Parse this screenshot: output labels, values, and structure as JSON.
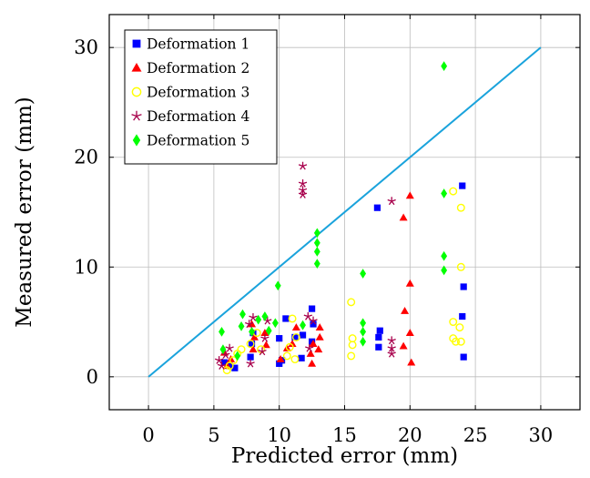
{
  "chart_data": {
    "type": "scatter",
    "xlabel": "Predicted error (mm)",
    "ylabel": "Measured error (mm)",
    "xlim": [
      -3,
      33
    ],
    "ylim": [
      -3,
      33
    ],
    "xticks": [
      0,
      5,
      10,
      15,
      20,
      25,
      30
    ],
    "yticks": [
      0,
      10,
      20,
      30
    ],
    "grid": true,
    "legend_position": "top-left",
    "reference_line": {
      "x": [
        0,
        30
      ],
      "y": [
        0,
        30
      ],
      "color": "#1aa3dc"
    },
    "series": [
      {
        "name": "Deformation 1",
        "marker": "square",
        "color": "#0000ff",
        "points": [
          [
            5.8,
            1.3
          ],
          [
            6.2,
            1.0
          ],
          [
            6.6,
            0.8
          ],
          [
            7.8,
            1.8
          ],
          [
            7.9,
            3.0
          ],
          [
            8.0,
            4.0
          ],
          [
            10.0,
            1.2
          ],
          [
            10.2,
            1.5
          ],
          [
            10.0,
            3.5
          ],
          [
            10.5,
            5.3
          ],
          [
            11.2,
            3.6
          ],
          [
            11.7,
            1.7
          ],
          [
            11.8,
            3.8
          ],
          [
            12.5,
            3.2
          ],
          [
            12.6,
            4.8
          ],
          [
            12.5,
            6.2
          ],
          [
            17.6,
            2.7
          ],
          [
            17.6,
            3.6
          ],
          [
            17.7,
            4.2
          ],
          [
            17.5,
            15.4
          ],
          [
            24.0,
            17.4
          ],
          [
            24.1,
            8.2
          ],
          [
            24.0,
            5.5
          ],
          [
            24.1,
            1.8
          ]
        ]
      },
      {
        "name": "Deformation 2",
        "marker": "triangle",
        "color": "#ff0000",
        "points": [
          [
            5.8,
            2.2
          ],
          [
            6.0,
            1.0
          ],
          [
            6.3,
            1.6
          ],
          [
            7.9,
            4.8
          ],
          [
            8.0,
            2.5
          ],
          [
            8.1,
            3.6
          ],
          [
            8.9,
            4.0
          ],
          [
            9.0,
            2.9
          ],
          [
            10.1,
            1.6
          ],
          [
            10.6,
            2.6
          ],
          [
            11.0,
            3.0
          ],
          [
            11.3,
            4.5
          ],
          [
            12.4,
            2.1
          ],
          [
            12.5,
            1.2
          ],
          [
            12.6,
            3.0
          ],
          [
            13.0,
            2.5
          ],
          [
            13.1,
            3.6
          ],
          [
            13.1,
            4.5
          ],
          [
            19.5,
            2.8
          ],
          [
            19.6,
            6.0
          ],
          [
            19.5,
            14.5
          ],
          [
            20.0,
            16.5
          ],
          [
            20.0,
            8.5
          ],
          [
            20.0,
            4.0
          ],
          [
            20.1,
            1.3
          ]
        ]
      },
      {
        "name": "Deformation 3",
        "marker": "circle-open",
        "color": "#ffff00",
        "points": [
          [
            6.0,
            0.6
          ],
          [
            6.2,
            1.0
          ],
          [
            6.5,
            1.5
          ],
          [
            6.8,
            2.1
          ],
          [
            7.1,
            2.5
          ],
          [
            7.8,
            3.0
          ],
          [
            8.3,
            4.0
          ],
          [
            8.6,
            2.5
          ],
          [
            10.6,
            1.9
          ],
          [
            10.8,
            2.7
          ],
          [
            11.0,
            5.3
          ],
          [
            11.2,
            1.6
          ],
          [
            11.3,
            3.6
          ],
          [
            15.5,
            6.8
          ],
          [
            15.6,
            3.5
          ],
          [
            15.6,
            2.9
          ],
          [
            15.5,
            1.9
          ],
          [
            23.3,
            16.9
          ],
          [
            23.9,
            15.4
          ],
          [
            23.9,
            10.0
          ],
          [
            23.3,
            5.0
          ],
          [
            23.8,
            4.5
          ],
          [
            23.3,
            3.5
          ],
          [
            23.5,
            3.2
          ],
          [
            23.9,
            3.2
          ]
        ]
      },
      {
        "name": "Deformation 4",
        "marker": "star",
        "color": "#a8004c",
        "points": [
          [
            5.4,
            1.5
          ],
          [
            5.6,
            1.0
          ],
          [
            5.9,
            2.0
          ],
          [
            6.2,
            2.6
          ],
          [
            7.7,
            4.8
          ],
          [
            7.8,
            1.2
          ],
          [
            8.0,
            5.4
          ],
          [
            8.7,
            2.3
          ],
          [
            8.9,
            3.5
          ],
          [
            9.1,
            5.1
          ],
          [
            11.8,
            19.2
          ],
          [
            11.8,
            17.6
          ],
          [
            11.8,
            17.0
          ],
          [
            11.8,
            16.6
          ],
          [
            12.2,
            5.5
          ],
          [
            12.3,
            2.6
          ],
          [
            12.6,
            5.1
          ],
          [
            18.6,
            16.0
          ],
          [
            18.6,
            3.3
          ],
          [
            18.6,
            2.6
          ],
          [
            18.6,
            2.1
          ]
        ]
      },
      {
        "name": "Deformation 5",
        "marker": "diamond",
        "color": "#00ff00",
        "points": [
          [
            5.6,
            4.1
          ],
          [
            5.7,
            2.5
          ],
          [
            6.8,
            1.9
          ],
          [
            7.1,
            4.6
          ],
          [
            7.2,
            5.7
          ],
          [
            7.9,
            4.1
          ],
          [
            8.4,
            5.2
          ],
          [
            8.9,
            5.5
          ],
          [
            9.2,
            4.2
          ],
          [
            9.7,
            4.9
          ],
          [
            9.9,
            8.3
          ],
          [
            11.8,
            4.7
          ],
          [
            12.9,
            13.1
          ],
          [
            12.9,
            12.2
          ],
          [
            12.9,
            11.4
          ],
          [
            12.9,
            10.3
          ],
          [
            16.4,
            9.4
          ],
          [
            16.4,
            4.9
          ],
          [
            16.4,
            4.1
          ],
          [
            16.4,
            3.2
          ],
          [
            22.6,
            28.3
          ],
          [
            22.6,
            16.7
          ],
          [
            22.6,
            11.0
          ],
          [
            22.6,
            9.7
          ]
        ]
      }
    ]
  }
}
